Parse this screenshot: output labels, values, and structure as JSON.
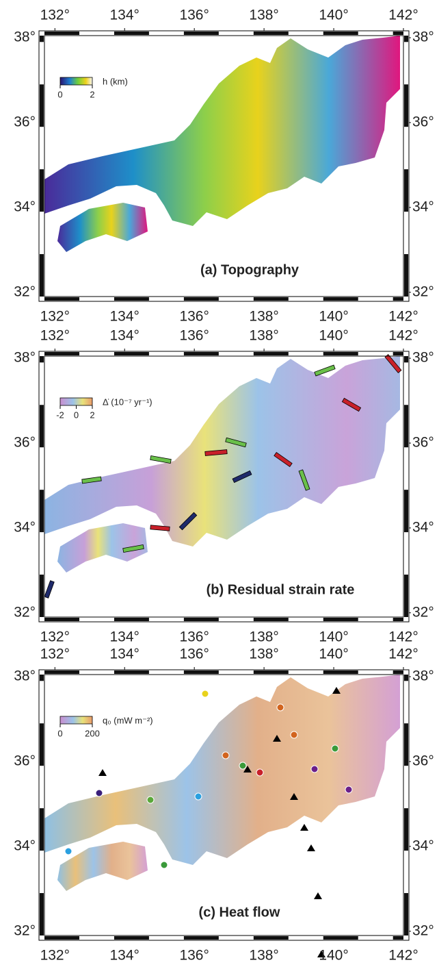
{
  "panels": [
    {
      "title": "(a) Topography",
      "xlim": [
        131.7,
        142
      ],
      "ylim": [
        31.9,
        38.05
      ],
      "lon_ticks": [
        {
          "value": 132,
          "label": "132°"
        },
        {
          "value": 134,
          "label": "134°"
        },
        {
          "value": 136,
          "label": "136°"
        },
        {
          "value": 138,
          "label": "138°"
        },
        {
          "value": 140,
          "label": "140°"
        },
        {
          "value": 142,
          "label": "142°"
        }
      ],
      "lat_ticks": [
        {
          "value": 38,
          "label": "38°"
        },
        {
          "value": 36,
          "label": "36°"
        },
        {
          "value": 34,
          "label": "34°"
        },
        {
          "value": 32,
          "label": "32°"
        }
      ],
      "colorbar": {
        "label": "h (km)",
        "ticks": [
          0,
          2
        ]
      }
    },
    {
      "title": "(b) Residual strain rate",
      "xlim": [
        131.7,
        142
      ],
      "ylim": [
        31.9,
        38.05
      ],
      "lon_ticks": [
        {
          "value": 132,
          "label": "132°"
        },
        {
          "value": 134,
          "label": "134°"
        },
        {
          "value": 136,
          "label": "136°"
        },
        {
          "value": 138,
          "label": "138°"
        },
        {
          "value": 140,
          "label": "140°"
        },
        {
          "value": 142,
          "label": "142°"
        }
      ],
      "lat_ticks": [
        {
          "value": 38,
          "label": "38°"
        },
        {
          "value": 36,
          "label": "36°"
        },
        {
          "value": 34,
          "label": "34°"
        },
        {
          "value": 32,
          "label": "32°"
        }
      ],
      "colorbar": {
        "label": "Δ̇ (10⁻⁷ yr⁻¹)",
        "ticks": [
          -2,
          0,
          2
        ]
      }
    },
    {
      "title": "(c) Heat flow",
      "xlim": [
        131.7,
        142
      ],
      "ylim": [
        31.9,
        38.05
      ],
      "lon_ticks": [
        {
          "value": 132,
          "label": "132°"
        },
        {
          "value": 134,
          "label": "134°"
        },
        {
          "value": 136,
          "label": "136°"
        },
        {
          "value": 138,
          "label": "138°"
        },
        {
          "value": 140,
          "label": "140°"
        },
        {
          "value": 142,
          "label": "142°"
        }
      ],
      "lat_ticks": [
        {
          "value": 38,
          "label": "38°"
        },
        {
          "value": 36,
          "label": "36°"
        },
        {
          "value": 34,
          "label": "34°"
        },
        {
          "value": 32,
          "label": "32°"
        }
      ],
      "colorbar": {
        "label": "q₀ (mW m⁻²)",
        "ticks": [
          0,
          200
        ]
      }
    }
  ]
}
